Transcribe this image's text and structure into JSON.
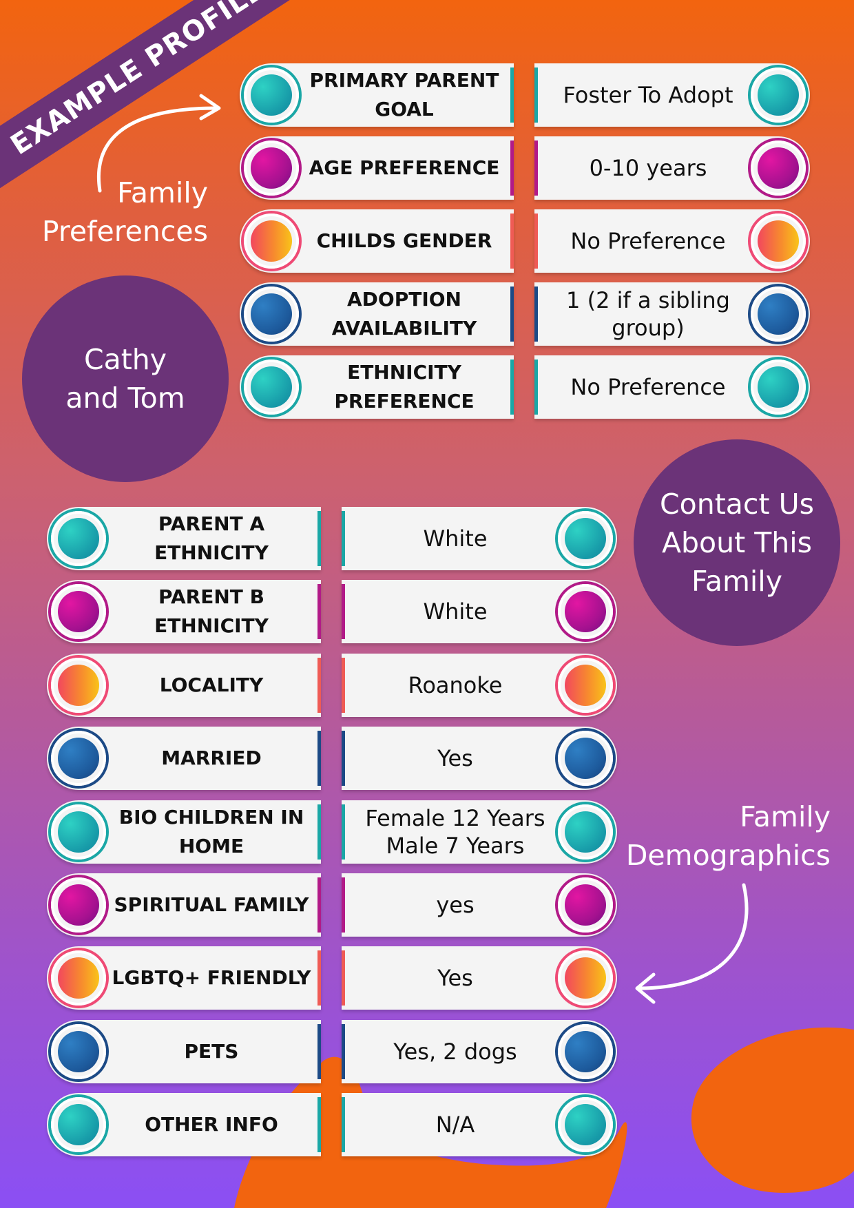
{
  "banner": {
    "text": "EXAMPLE PROFILE"
  },
  "sections": {
    "preferences_label": "Family Preferences",
    "demographics_label": "Family Demographics"
  },
  "family_name": "Cathy and Tom",
  "contact": {
    "label": "Contact Us About This Family"
  },
  "colors": {
    "background_top": "#f2640f",
    "background_bottom": "#8b4ff4",
    "circle_purple": "#6b3378",
    "teal": "#1aa7a6",
    "magenta": "#b21a88",
    "sunset": "#ef5b55",
    "navy": "#1c4a86"
  },
  "preferences": [
    {
      "label": "PRIMARY PARENT GOAL",
      "value": "Foster To Adopt",
      "color": "teal"
    },
    {
      "label": "AGE PREFERENCE",
      "value": "0-10 years",
      "color": "magenta"
    },
    {
      "label": "CHILDS GENDER",
      "value": "No Preference",
      "color": "sunset"
    },
    {
      "label": "ADOPTION AVAILABILITY",
      "value": "1 (2 if a sibling group)",
      "color": "navy"
    },
    {
      "label": "ETHNICITY PREFERENCE",
      "value": "No Preference",
      "color": "teal"
    }
  ],
  "demographics": [
    {
      "label": "PARENT A ETHNICITY",
      "value": "White",
      "color": "teal"
    },
    {
      "label": "PARENT B ETHNICITY",
      "value": "White",
      "color": "magenta"
    },
    {
      "label": "LOCALITY",
      "value": "Roanoke",
      "color": "sunset"
    },
    {
      "label": "MARRIED",
      "value": "Yes",
      "color": "navy"
    },
    {
      "label": "BIO CHILDREN IN HOME",
      "value": "Female 12 Years Male 7 Years",
      "color": "teal"
    },
    {
      "label": "SPIRITUAL FAMILY",
      "value": "yes",
      "color": "magenta"
    },
    {
      "label": "LGBTQ+ FRIENDLY",
      "value": "Yes",
      "color": "sunset"
    },
    {
      "label": "PETS",
      "value": "Yes, 2 dogs",
      "color": "navy"
    },
    {
      "label": "OTHER INFO",
      "value": "N/A",
      "color": "teal"
    }
  ]
}
